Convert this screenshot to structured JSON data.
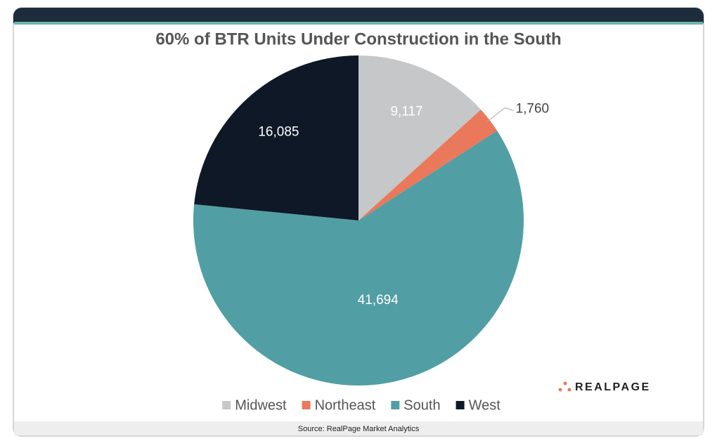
{
  "chart_data": {
    "type": "pie",
    "title": "60% of BTR Units Under Construction in the South",
    "categories": [
      "Midwest",
      "Northeast",
      "South",
      "West"
    ],
    "values": [
      9117,
      1760,
      41694,
      16085
    ],
    "value_labels": [
      "9,117",
      "1,760",
      "41,694",
      "16,085"
    ],
    "colors": [
      "#c5c7c9",
      "#e9795a",
      "#529ea5",
      "#0e1826"
    ],
    "legend": "bottom"
  },
  "logo": "REALPAGE",
  "source": "Source: RealPage Market Analytics"
}
